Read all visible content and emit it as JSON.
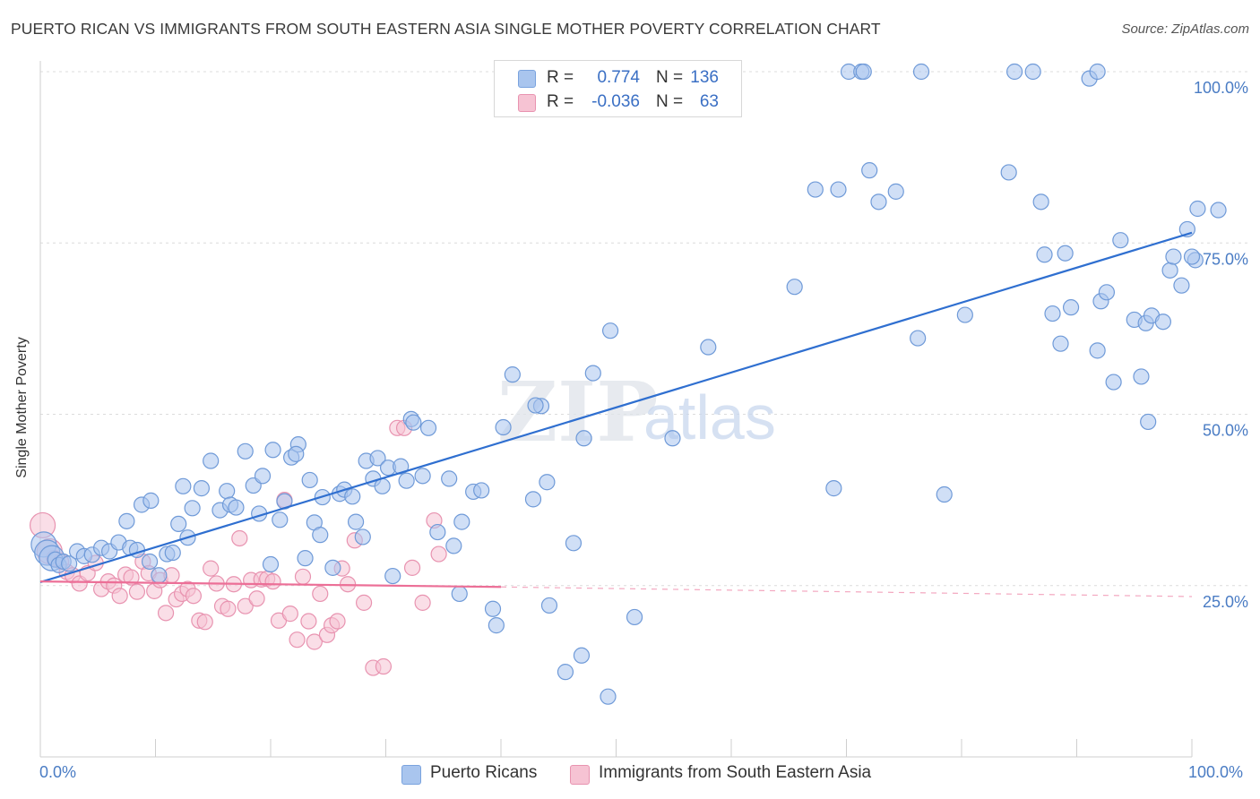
{
  "title": "PUERTO RICAN VS IMMIGRANTS FROM SOUTH EASTERN ASIA SINGLE MOTHER POVERTY CORRELATION CHART",
  "source": "Source: ZipAtlas.com",
  "watermark": {
    "zip": "ZIP",
    "atlas": "atlas"
  },
  "legend": {
    "rows": [
      {
        "r_label": "R =",
        "r_value": "0.774",
        "n_label": "N =",
        "n_value": "136",
        "color": "#a9c5ee",
        "text_color": "#3a6fc4"
      },
      {
        "r_label": "R =",
        "r_value": "-0.036",
        "n_label": "N =",
        "n_value": "63",
        "color": "#f6b9cc",
        "text_color": "#3a6fc4"
      }
    ]
  },
  "bottom_legend": [
    {
      "label": "Puerto Ricans",
      "color": "#a9c5ee",
      "border": "#7aa3de"
    },
    {
      "label": "Immigrants from South Eastern Asia",
      "color": "#f6c3d3",
      "border": "#e893b0"
    }
  ],
  "x_tick_labels": {
    "left": "0.0%",
    "right": "100.0%"
  },
  "chart_data": {
    "type": "scatter",
    "title": "PUERTO RICAN VS IMMIGRANTS FROM SOUTH EASTERN ASIA SINGLE MOTHER POVERTY CORRELATION CHART",
    "xlabel": "",
    "ylabel": "Single Mother Poverty",
    "xlim": [
      0,
      100
    ],
    "ylim": [
      0,
      102
    ],
    "y_ticks": [
      {
        "value": 25,
        "label": "25.0%"
      },
      {
        "value": 50,
        "label": "50.0%"
      },
      {
        "value": 75,
        "label": "75.0%"
      },
      {
        "value": 100,
        "label": "100.0%"
      }
    ],
    "grid": "horizontal dashed",
    "series": [
      {
        "name": "Puerto Ricans",
        "fill": "#a9c5ee",
        "stroke": "#6f9ad8",
        "trend": {
          "x0": 0,
          "y0": 25.5,
          "x1": 100,
          "y1": 76.5,
          "color": "#2f6fd0"
        },
        "points": [
          [
            0.3,
            31
          ],
          [
            0.6,
            29.8
          ],
          [
            1,
            29
          ],
          [
            1.3,
            28.8
          ],
          [
            1.6,
            28
          ],
          [
            2,
            28.5
          ],
          [
            2.5,
            28.2
          ],
          [
            3.2,
            30
          ],
          [
            3.8,
            29.3
          ],
          [
            4.5,
            29.5
          ],
          [
            5.3,
            30.5
          ],
          [
            6,
            30
          ],
          [
            6.8,
            31.3
          ],
          [
            7.8,
            30.5
          ],
          [
            8.4,
            30.2
          ],
          [
            9.5,
            28.5
          ],
          [
            10.3,
            26.5
          ],
          [
            11,
            29.6
          ],
          [
            11.5,
            29.8
          ],
          [
            7.5,
            34.4
          ],
          [
            8.8,
            36.8
          ],
          [
            9.6,
            37.4
          ],
          [
            12,
            34
          ],
          [
            12.8,
            32
          ],
          [
            12.4,
            39.5
          ],
          [
            13.2,
            36.3
          ],
          [
            14,
            39.2
          ],
          [
            14.8,
            43.2
          ],
          [
            15.6,
            36
          ],
          [
            16.2,
            38.8
          ],
          [
            16.5,
            36.8
          ],
          [
            17,
            36.4
          ],
          [
            17.8,
            44.6
          ],
          [
            18.5,
            39.6
          ],
          [
            19,
            35.5
          ],
          [
            19.3,
            41
          ],
          [
            20,
            28.1
          ],
          [
            20.2,
            44.8
          ],
          [
            20.8,
            34.6
          ],
          [
            21.2,
            37.3
          ],
          [
            21.8,
            43.7
          ],
          [
            22.4,
            45.6
          ],
          [
            22.2,
            44.2
          ],
          [
            23,
            29
          ],
          [
            23.4,
            40.4
          ],
          [
            23.8,
            34.2
          ],
          [
            24.3,
            32.4
          ],
          [
            24.5,
            37.9
          ],
          [
            25.4,
            27.6
          ],
          [
            26,
            38.4
          ],
          [
            26.4,
            39
          ],
          [
            27.1,
            38
          ],
          [
            27.4,
            34.3
          ],
          [
            28,
            32.1
          ],
          [
            28.3,
            43.2
          ],
          [
            28.9,
            40.6
          ],
          [
            29.3,
            43.6
          ],
          [
            30.2,
            42.2
          ],
          [
            29.7,
            39.5
          ],
          [
            30.6,
            26.4
          ],
          [
            31.3,
            42.4
          ],
          [
            31.8,
            40.3
          ],
          [
            32.2,
            49.3
          ],
          [
            32.4,
            48.8
          ],
          [
            33.2,
            41
          ],
          [
            34.5,
            32.8
          ],
          [
            35.5,
            40.6
          ],
          [
            35.9,
            30.8
          ],
          [
            36.6,
            34.3
          ],
          [
            36.4,
            23.8
          ],
          [
            37.6,
            38.7
          ],
          [
            38.3,
            38.9
          ],
          [
            39.3,
            21.6
          ],
          [
            39.6,
            19.2
          ],
          [
            40.2,
            48.1
          ],
          [
            41,
            55.8
          ],
          [
            43.5,
            51.2
          ],
          [
            43,
            51.3
          ],
          [
            42.8,
            37.6
          ],
          [
            44.2,
            22.1
          ],
          [
            45.6,
            12.4
          ],
          [
            46.3,
            31.2
          ],
          [
            47.2,
            46.5
          ],
          [
            48,
            56
          ],
          [
            49.5,
            62.2
          ],
          [
            51.6,
            20.4
          ],
          [
            54.9,
            46.5
          ],
          [
            58,
            59.8
          ],
          [
            65.5,
            68.6
          ],
          [
            67.3,
            82.8
          ],
          [
            68.9,
            39.2
          ],
          [
            69.3,
            82.8
          ],
          [
            72,
            85.6
          ],
          [
            72.8,
            81
          ],
          [
            74.3,
            82.5
          ],
          [
            76.2,
            61.1
          ],
          [
            78.5,
            38.3
          ],
          [
            80.3,
            64.5
          ],
          [
            84.1,
            85.3
          ],
          [
            84.6,
            100
          ],
          [
            86.9,
            81
          ],
          [
            87.2,
            73.3
          ],
          [
            87.9,
            64.7
          ],
          [
            88.6,
            60.3
          ],
          [
            89,
            73.5
          ],
          [
            89.5,
            65.6
          ],
          [
            91.1,
            99
          ],
          [
            91.8,
            59.3
          ],
          [
            92.1,
            66.5
          ],
          [
            92.6,
            67.8
          ],
          [
            93.2,
            54.7
          ],
          [
            93.8,
            75.4
          ],
          [
            95,
            63.8
          ],
          [
            95.6,
            55.5
          ],
          [
            96,
            63.3
          ],
          [
            96.2,
            48.9
          ],
          [
            96.5,
            64.4
          ],
          [
            97.5,
            63.5
          ],
          [
            98.1,
            71
          ],
          [
            98.4,
            73
          ],
          [
            99.1,
            68.8
          ],
          [
            99.6,
            77
          ],
          [
            100.3,
            72.5
          ],
          [
            100.5,
            80
          ],
          [
            100,
            73
          ],
          [
            102.3,
            79.8
          ],
          [
            70.2,
            100
          ],
          [
            71.3,
            100
          ],
          [
            71.5,
            100
          ],
          [
            76.5,
            100
          ],
          [
            86.2,
            100
          ],
          [
            91.8,
            100
          ],
          [
            33.7,
            48
          ],
          [
            44,
            40.1
          ],
          [
            47,
            14.8
          ],
          [
            49.3,
            8.8
          ]
        ]
      },
      {
        "name": "Immigrants from South Eastern Asia",
        "fill": "#f6c3d3",
        "stroke": "#e893b0",
        "trend": {
          "x0": 0,
          "y0": 25.6,
          "x1": 40,
          "y1": 24.8,
          "dash_x1": 100,
          "dash_y1": 23.4,
          "color": "#ec6f97"
        },
        "points": [
          [
            0.2,
            33.8
          ],
          [
            0.8,
            30
          ],
          [
            1.2,
            29
          ],
          [
            1.8,
            28.5
          ],
          [
            2.3,
            27
          ],
          [
            2.8,
            26.5
          ],
          [
            3.4,
            25.3
          ],
          [
            4.1,
            26.8
          ],
          [
            4.8,
            28.3
          ],
          [
            5.3,
            24.5
          ],
          [
            5.9,
            25.6
          ],
          [
            6.4,
            25
          ],
          [
            6.9,
            23.5
          ],
          [
            7.4,
            26.6
          ],
          [
            7.9,
            26.2
          ],
          [
            8.4,
            24.1
          ],
          [
            8.9,
            28.5
          ],
          [
            9.4,
            26.8
          ],
          [
            9.9,
            24.2
          ],
          [
            10.4,
            25.8
          ],
          [
            10.9,
            21
          ],
          [
            11.4,
            26.5
          ],
          [
            11.8,
            23
          ],
          [
            12.3,
            23.8
          ],
          [
            12.8,
            24.5
          ],
          [
            13.3,
            23.5
          ],
          [
            13.8,
            19.9
          ],
          [
            14.3,
            19.7
          ],
          [
            14.8,
            27.5
          ],
          [
            15.3,
            25.3
          ],
          [
            15.8,
            22
          ],
          [
            16.3,
            21.6
          ],
          [
            16.8,
            25.2
          ],
          [
            17.3,
            31.9
          ],
          [
            17.8,
            22
          ],
          [
            18.3,
            25.8
          ],
          [
            18.8,
            23.1
          ],
          [
            19.2,
            25.9
          ],
          [
            19.7,
            26
          ],
          [
            20.2,
            25.6
          ],
          [
            20.7,
            19.9
          ],
          [
            21.2,
            37.5
          ],
          [
            21.7,
            20.9
          ],
          [
            22.3,
            17.1
          ],
          [
            22.8,
            26.3
          ],
          [
            23.3,
            19.8
          ],
          [
            23.8,
            16.8
          ],
          [
            24.3,
            23.8
          ],
          [
            24.9,
            17.8
          ],
          [
            25.3,
            19.2
          ],
          [
            25.8,
            19.8
          ],
          [
            26.2,
            27.5
          ],
          [
            26.7,
            25.2
          ],
          [
            27.3,
            31.6
          ],
          [
            28.1,
            22.5
          ],
          [
            28.9,
            13
          ],
          [
            29.8,
            13.2
          ],
          [
            31,
            48
          ],
          [
            31.6,
            48
          ],
          [
            32.3,
            27.6
          ],
          [
            33.2,
            22.5
          ],
          [
            34.2,
            34.5
          ],
          [
            34.6,
            29.6
          ]
        ]
      }
    ]
  }
}
